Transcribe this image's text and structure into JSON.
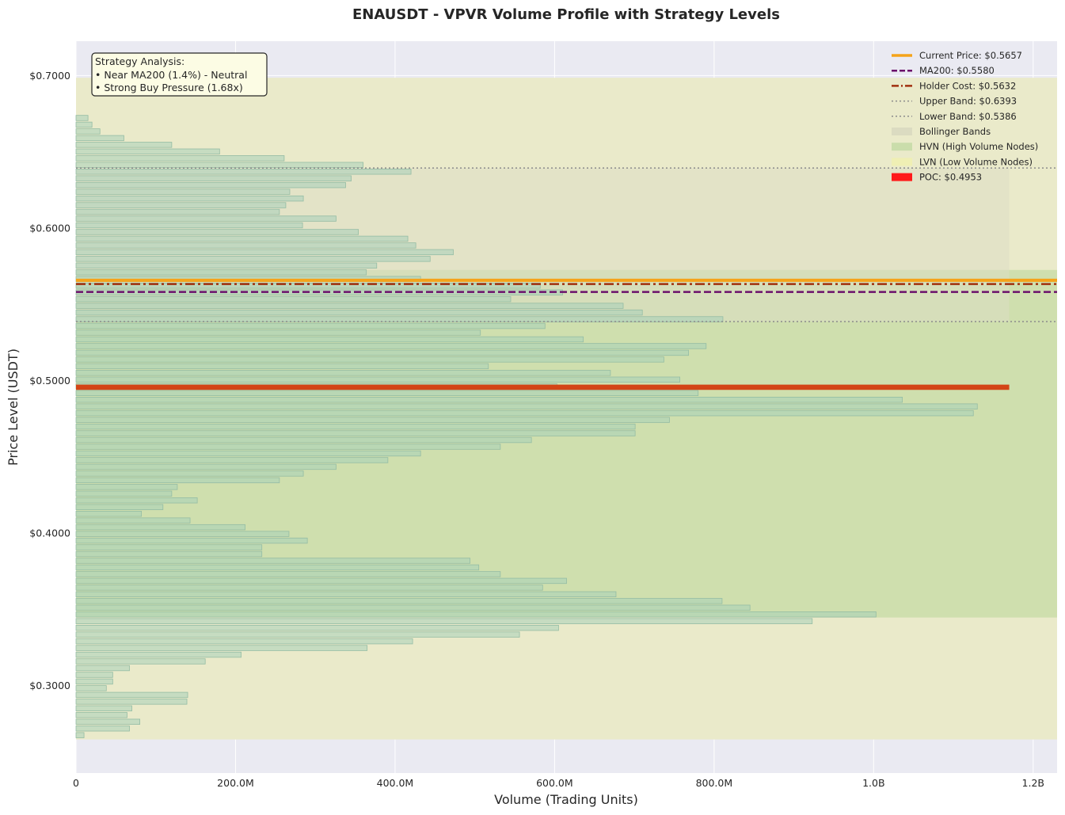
{
  "chart_data": {
    "type": "bar",
    "orientation": "horizontal",
    "title": "ENAUSDT - VPVR Volume Profile with Strategy Levels",
    "xlabel": "Volume (Trading Units)",
    "ylabel": "Price Level (USDT)",
    "xlim": [
      0,
      1230000000
    ],
    "ylim": [
      0.2425,
      0.7225
    ],
    "x_ticks": [
      {
        "value": 0,
        "label": "0"
      },
      {
        "value": 200000000,
        "label": "200.0M"
      },
      {
        "value": 400000000,
        "label": "400.0M"
      },
      {
        "value": 600000000,
        "label": "600.0M"
      },
      {
        "value": 800000000,
        "label": "800.0M"
      },
      {
        "value": 1000000000,
        "label": "1.0B"
      },
      {
        "value": 1200000000,
        "label": "1.2B"
      }
    ],
    "y_ticks": [
      {
        "value": 0.3,
        "label": "$0.3000"
      },
      {
        "value": 0.4,
        "label": "$0.4000"
      },
      {
        "value": 0.5,
        "label": "$0.5000"
      },
      {
        "value": 0.6,
        "label": "$0.6000"
      },
      {
        "value": 0.7,
        "label": "$0.7000"
      }
    ],
    "grid": true,
    "legend_position": "top-right",
    "bin_height": 0.0044,
    "bins": [
      {
        "price": 0.2671,
        "volume": 10000000
      },
      {
        "price": 0.2715,
        "volume": 67000000
      },
      {
        "price": 0.2759,
        "volume": 80000000
      },
      {
        "price": 0.2803,
        "volume": 64000000
      },
      {
        "price": 0.2847,
        "volume": 70000000
      },
      {
        "price": 0.2891,
        "volume": 139000000
      },
      {
        "price": 0.2935,
        "volume": 140000000
      },
      {
        "price": 0.2979,
        "volume": 38000000
      },
      {
        "price": 0.3023,
        "volume": 46000000
      },
      {
        "price": 0.3067,
        "volume": 46000000
      },
      {
        "price": 0.3111,
        "volume": 67000000
      },
      {
        "price": 0.3155,
        "volume": 162000000
      },
      {
        "price": 0.3199,
        "volume": 207000000
      },
      {
        "price": 0.3243,
        "volume": 365000000
      },
      {
        "price": 0.3287,
        "volume": 422000000
      },
      {
        "price": 0.3331,
        "volume": 556000000
      },
      {
        "price": 0.3375,
        "volume": 605000000
      },
      {
        "price": 0.3419,
        "volume": 923000000
      },
      {
        "price": 0.3463,
        "volume": 1003000000
      },
      {
        "price": 0.3507,
        "volume": 845000000
      },
      {
        "price": 0.3551,
        "volume": 810000000
      },
      {
        "price": 0.3595,
        "volume": 677000000
      },
      {
        "price": 0.3639,
        "volume": 585000000
      },
      {
        "price": 0.3683,
        "volume": 615000000
      },
      {
        "price": 0.3727,
        "volume": 532000000
      },
      {
        "price": 0.3771,
        "volume": 505000000
      },
      {
        "price": 0.3815,
        "volume": 494000000
      },
      {
        "price": 0.3859,
        "volume": 233000000
      },
      {
        "price": 0.3903,
        "volume": 233000000
      },
      {
        "price": 0.3947,
        "volume": 290000000
      },
      {
        "price": 0.3991,
        "volume": 267000000
      },
      {
        "price": 0.4035,
        "volume": 212000000
      },
      {
        "price": 0.4079,
        "volume": 143000000
      },
      {
        "price": 0.4123,
        "volume": 82000000
      },
      {
        "price": 0.4167,
        "volume": 109000000
      },
      {
        "price": 0.4211,
        "volume": 152000000
      },
      {
        "price": 0.4255,
        "volume": 120000000
      },
      {
        "price": 0.4299,
        "volume": 127000000
      },
      {
        "price": 0.4343,
        "volume": 255000000
      },
      {
        "price": 0.4387,
        "volume": 285000000
      },
      {
        "price": 0.4431,
        "volume": 326000000
      },
      {
        "price": 0.4475,
        "volume": 391000000
      },
      {
        "price": 0.4519,
        "volume": 432000000
      },
      {
        "price": 0.4563,
        "volume": 532000000
      },
      {
        "price": 0.4607,
        "volume": 571000000
      },
      {
        "price": 0.4651,
        "volume": 701000000
      },
      {
        "price": 0.4695,
        "volume": 701000000
      },
      {
        "price": 0.4739,
        "volume": 744000000
      },
      {
        "price": 0.4783,
        "volume": 1125000000
      },
      {
        "price": 0.4827,
        "volume": 1130000000
      },
      {
        "price": 0.4871,
        "volume": 1036000000
      },
      {
        "price": 0.4915,
        "volume": 780000000
      },
      {
        "price": 0.4959,
        "volume": 603000000
      },
      {
        "price": 0.5003,
        "volume": 757000000
      },
      {
        "price": 0.5047,
        "volume": 670000000
      },
      {
        "price": 0.5091,
        "volume": 517000000
      },
      {
        "price": 0.5135,
        "volume": 737000000
      },
      {
        "price": 0.5179,
        "volume": 768000000
      },
      {
        "price": 0.5223,
        "volume": 790000000
      },
      {
        "price": 0.5267,
        "volume": 636000000
      },
      {
        "price": 0.5311,
        "volume": 507000000
      },
      {
        "price": 0.5355,
        "volume": 588000000
      },
      {
        "price": 0.5399,
        "volume": 811000000
      },
      {
        "price": 0.5443,
        "volume": 710000000
      },
      {
        "price": 0.5487,
        "volume": 686000000
      },
      {
        "price": 0.5531,
        "volume": 545000000
      },
      {
        "price": 0.5575,
        "volume": 610000000
      },
      {
        "price": 0.5619,
        "volume": 582000000
      },
      {
        "price": 0.5663,
        "volume": 432000000
      },
      {
        "price": 0.5707,
        "volume": 364000000
      },
      {
        "price": 0.5751,
        "volume": 377000000
      },
      {
        "price": 0.5795,
        "volume": 444000000
      },
      {
        "price": 0.5839,
        "volume": 473000000
      },
      {
        "price": 0.5883,
        "volume": 426000000
      },
      {
        "price": 0.5927,
        "volume": 416000000
      },
      {
        "price": 0.5971,
        "volume": 354000000
      },
      {
        "price": 0.6015,
        "volume": 284000000
      },
      {
        "price": 0.6059,
        "volume": 326000000
      },
      {
        "price": 0.6103,
        "volume": 255000000
      },
      {
        "price": 0.6147,
        "volume": 263000000
      },
      {
        "price": 0.6191,
        "volume": 285000000
      },
      {
        "price": 0.6235,
        "volume": 268000000
      },
      {
        "price": 0.6279,
        "volume": 338000000
      },
      {
        "price": 0.6323,
        "volume": 345000000
      },
      {
        "price": 0.6367,
        "volume": 420000000
      },
      {
        "price": 0.6411,
        "volume": 360000000
      },
      {
        "price": 0.6455,
        "volume": 261000000
      },
      {
        "price": 0.6499,
        "volume": 180000000
      },
      {
        "price": 0.6543,
        "volume": 120000000
      },
      {
        "price": 0.6587,
        "volume": 60000000
      },
      {
        "price": 0.6631,
        "volume": 30000000
      },
      {
        "price": 0.6675,
        "volume": 20000000
      },
      {
        "price": 0.6719,
        "volume": 15000000
      }
    ],
    "zones": {
      "lvn_range": [
        0.2645,
        0.6985
      ],
      "hvn_range": [
        0.3445,
        0.5725
      ],
      "bollinger": {
        "lower": 0.5386,
        "upper": 0.6393,
        "max_volume": 1170000000
      }
    },
    "poc": {
      "price": 0.4953,
      "volume": 1170000000
    },
    "levels": {
      "current_price": 0.5657,
      "ma200": 0.558,
      "holder_cost": 0.5632,
      "upper_band": 0.6393,
      "lower_band": 0.5386
    },
    "legend": [
      {
        "label": "Current Price: $0.5657",
        "style": "solid-thick",
        "color": "#f5a31a"
      },
      {
        "label": "MA200: $0.5580",
        "style": "dashed",
        "color": "#6b0f6b"
      },
      {
        "label": "Holder Cost: $0.5632",
        "style": "dashdot",
        "color": "#a0300f"
      },
      {
        "label": "Upper Band: $0.6393",
        "style": "dotted",
        "color": "#8c8c8c"
      },
      {
        "label": "Lower Band: $0.5386",
        "style": "dotted",
        "color": "#8c8c8c"
      },
      {
        "label": "Bollinger Bands",
        "style": "patch",
        "color": "#d8d8c0"
      },
      {
        "label": "HVN (High Volume Nodes)",
        "style": "patch",
        "color": "#c4dba6"
      },
      {
        "label": "LVN (Low Volume Nodes)",
        "style": "patch",
        "color": "#f0f0b0"
      },
      {
        "label": "POC: $0.4953",
        "style": "patch",
        "color": "#ff1a1a"
      }
    ],
    "annotation": {
      "lines": [
        "Strategy Analysis:",
        "• Near MA200 (1.4%) - Neutral",
        "• Strong Buy Pressure (1.68x)"
      ]
    },
    "colors": {
      "plot_bg": "#eaeaf2",
      "lvn_fill": "#eaeaca",
      "hvn_fill": "#cfdfae",
      "bollinger_fill": "#dcdcc4",
      "bar_fill": "#a8cfba",
      "bar_edge": "#94bca4",
      "poc_color": "#d34516",
      "current_price_color": "#f5a31a",
      "ma200_color": "#6b0f6b",
      "holder_cost_color": "#a0300f",
      "band_color": "#8c8c8c"
    }
  }
}
